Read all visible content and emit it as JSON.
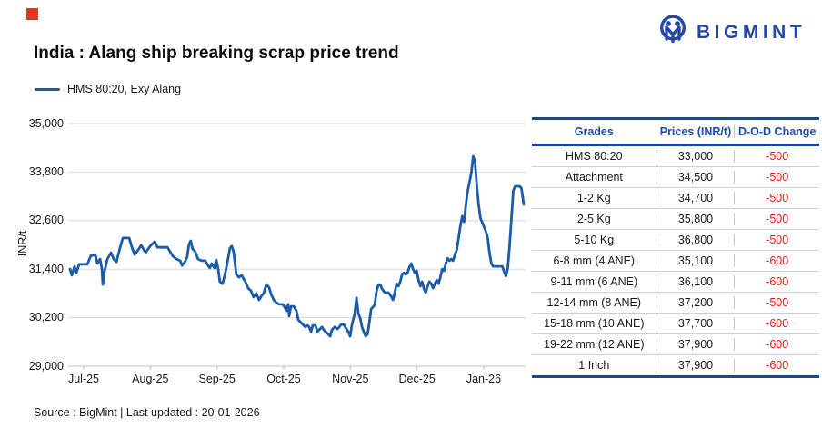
{
  "brand": {
    "name": "BIGMINT",
    "color": "#2547A5"
  },
  "marker_color": "#EB3323",
  "title": "India : Alang ship breaking scrap price trend",
  "legend": {
    "label": "HMS 80:20, Exy Alang",
    "line_color": "#1A5CA8"
  },
  "footer": "Source : BigMint | Last updated : 20-01-2026",
  "chart_data": {
    "type": "line",
    "title": "India : Alang ship breaking scrap price trend",
    "series_name": "HMS 80:20, Exy Alang",
    "ylabel": "INR/t",
    "ylim": [
      29000,
      35000
    ],
    "ytick_step": 1200,
    "yticks": [
      "29,000",
      "30,200",
      "31,400",
      "32,600",
      "33,800",
      "35,000"
    ],
    "xticks": [
      "Jul-25",
      "Aug-25",
      "Sep-25",
      "Oct-25",
      "Nov-25",
      "Dec-25",
      "Jan-26"
    ],
    "grid": true,
    "legend_position": "top-left",
    "line_color": "#1A5CA8",
    "last_value": 33000,
    "points": [
      [
        0.004,
        31400
      ],
      [
        0.008,
        31250
      ],
      [
        0.014,
        31470
      ],
      [
        0.018,
        31310
      ],
      [
        0.024,
        31520
      ],
      [
        0.042,
        31520
      ],
      [
        0.05,
        31740
      ],
      [
        0.06,
        31740
      ],
      [
        0.064,
        31540
      ],
      [
        0.07,
        31650
      ],
      [
        0.074,
        31400
      ],
      [
        0.076,
        31020
      ],
      [
        0.08,
        31360
      ],
      [
        0.086,
        31650
      ],
      [
        0.094,
        31810
      ],
      [
        0.1,
        31650
      ],
      [
        0.106,
        31580
      ],
      [
        0.114,
        31940
      ],
      [
        0.12,
        32170
      ],
      [
        0.134,
        32170
      ],
      [
        0.14,
        31940
      ],
      [
        0.146,
        31760
      ],
      [
        0.154,
        31880
      ],
      [
        0.16,
        31990
      ],
      [
        0.17,
        31810
      ],
      [
        0.18,
        31970
      ],
      [
        0.19,
        32080
      ],
      [
        0.196,
        31940
      ],
      [
        0.218,
        31940
      ],
      [
        0.23,
        31720
      ],
      [
        0.238,
        31650
      ],
      [
        0.246,
        31610
      ],
      [
        0.25,
        31490
      ],
      [
        0.256,
        31580
      ],
      [
        0.261,
        31700
      ],
      [
        0.265,
        32010
      ],
      [
        0.269,
        32100
      ],
      [
        0.273,
        31900
      ],
      [
        0.279,
        31830
      ],
      [
        0.285,
        31650
      ],
      [
        0.293,
        31610
      ],
      [
        0.301,
        31610
      ],
      [
        0.307,
        31490
      ],
      [
        0.311,
        31430
      ],
      [
        0.315,
        31540
      ],
      [
        0.321,
        31430
      ],
      [
        0.325,
        31630
      ],
      [
        0.329,
        31430
      ],
      [
        0.333,
        31090
      ],
      [
        0.339,
        31040
      ],
      [
        0.345,
        31310
      ],
      [
        0.349,
        31540
      ],
      [
        0.355,
        31920
      ],
      [
        0.359,
        31970
      ],
      [
        0.363,
        31830
      ],
      [
        0.369,
        31270
      ],
      [
        0.375,
        31200
      ],
      [
        0.381,
        31250
      ],
      [
        0.385,
        31160
      ],
      [
        0.389,
        31090
      ],
      [
        0.395,
        30930
      ],
      [
        0.401,
        30870
      ],
      [
        0.407,
        30710
      ],
      [
        0.413,
        30800
      ],
      [
        0.419,
        30640
      ],
      [
        0.425,
        30750
      ],
      [
        0.429,
        30800
      ],
      [
        0.435,
        31020
      ],
      [
        0.441,
        30950
      ],
      [
        0.445,
        30800
      ],
      [
        0.451,
        30640
      ],
      [
        0.457,
        30570
      ],
      [
        0.463,
        30530
      ],
      [
        0.471,
        30530
      ],
      [
        0.475,
        30460
      ],
      [
        0.479,
        30370
      ],
      [
        0.483,
        30530
      ],
      [
        0.485,
        30240
      ],
      [
        0.489,
        30480
      ],
      [
        0.495,
        30480
      ],
      [
        0.501,
        30370
      ],
      [
        0.505,
        30150
      ],
      [
        0.511,
        30080
      ],
      [
        0.517,
        30010
      ],
      [
        0.521,
        29970
      ],
      [
        0.525,
        30010
      ],
      [
        0.529,
        29970
      ],
      [
        0.533,
        29850
      ],
      [
        0.537,
        30010
      ],
      [
        0.543,
        30010
      ],
      [
        0.547,
        29850
      ],
      [
        0.551,
        29900
      ],
      [
        0.557,
        29970
      ],
      [
        0.561,
        29900
      ],
      [
        0.565,
        29850
      ],
      [
        0.571,
        29790
      ],
      [
        0.575,
        29740
      ],
      [
        0.579,
        29900
      ],
      [
        0.585,
        29970
      ],
      [
        0.591,
        29920
      ],
      [
        0.595,
        29970
      ],
      [
        0.599,
        30030
      ],
      [
        0.605,
        30030
      ],
      [
        0.611,
        29920
      ],
      [
        0.615,
        29850
      ],
      [
        0.619,
        29740
      ],
      [
        0.623,
        30030
      ],
      [
        0.629,
        30300
      ],
      [
        0.633,
        30690
      ],
      [
        0.637,
        30300
      ],
      [
        0.641,
        30190
      ],
      [
        0.645,
        29970
      ],
      [
        0.649,
        29850
      ],
      [
        0.653,
        29740
      ],
      [
        0.657,
        29790
      ],
      [
        0.661,
        30080
      ],
      [
        0.665,
        30420
      ],
      [
        0.669,
        30460
      ],
      [
        0.673,
        30530
      ],
      [
        0.677,
        30870
      ],
      [
        0.681,
        31020
      ],
      [
        0.685,
        31020
      ],
      [
        0.689,
        30910
      ],
      [
        0.695,
        30820
      ],
      [
        0.703,
        30820
      ],
      [
        0.709,
        30730
      ],
      [
        0.713,
        30640
      ],
      [
        0.717,
        30820
      ],
      [
        0.721,
        31040
      ],
      [
        0.725,
        30980
      ],
      [
        0.729,
        31090
      ],
      [
        0.733,
        31270
      ],
      [
        0.737,
        31310
      ],
      [
        0.741,
        31270
      ],
      [
        0.745,
        31310
      ],
      [
        0.749,
        31450
      ],
      [
        0.753,
        31540
      ],
      [
        0.757,
        31400
      ],
      [
        0.761,
        31310
      ],
      [
        0.765,
        31360
      ],
      [
        0.769,
        31130
      ],
      [
        0.773,
        30980
      ],
      [
        0.777,
        31090
      ],
      [
        0.781,
        30910
      ],
      [
        0.785,
        30820
      ],
      [
        0.789,
        30980
      ],
      [
        0.793,
        31090
      ],
      [
        0.797,
        31040
      ],
      [
        0.801,
        30930
      ],
      [
        0.805,
        31040
      ],
      [
        0.809,
        31130
      ],
      [
        0.813,
        31040
      ],
      [
        0.817,
        31200
      ],
      [
        0.821,
        31400
      ],
      [
        0.825,
        31360
      ],
      [
        0.829,
        31540
      ],
      [
        0.833,
        31670
      ],
      [
        0.837,
        31610
      ],
      [
        0.841,
        31650
      ],
      [
        0.845,
        31610
      ],
      [
        0.849,
        31760
      ],
      [
        0.853,
        31880
      ],
      [
        0.857,
        32170
      ],
      [
        0.861,
        32480
      ],
      [
        0.865,
        32710
      ],
      [
        0.869,
        32570
      ],
      [
        0.871,
        32750
      ],
      [
        0.873,
        33000
      ],
      [
        0.877,
        33340
      ],
      [
        0.881,
        33560
      ],
      [
        0.885,
        33790
      ],
      [
        0.889,
        34190
      ],
      [
        0.893,
        34060
      ],
      [
        0.897,
        33450
      ],
      [
        0.901,
        33000
      ],
      [
        0.905,
        32660
      ],
      [
        0.909,
        32550
      ],
      [
        0.913,
        32440
      ],
      [
        0.917,
        32330
      ],
      [
        0.921,
        32170
      ],
      [
        0.925,
        31800
      ],
      [
        0.929,
        31540
      ],
      [
        0.933,
        31470
      ],
      [
        0.953,
        31470
      ],
      [
        0.957,
        31330
      ],
      [
        0.961,
        31230
      ],
      [
        0.965,
        31430
      ],
      [
        0.969,
        31990
      ],
      [
        0.973,
        32660
      ],
      [
        0.977,
        33340
      ],
      [
        0.981,
        33450
      ],
      [
        0.991,
        33450
      ],
      [
        0.995,
        33400
      ],
      [
        1.0,
        33000
      ]
    ]
  },
  "table": {
    "headers": [
      "Grades",
      "Prices (INR/t)",
      "D-O-D Change"
    ],
    "header_color": "#1F4EA1",
    "change_color": "#F01414",
    "rows": [
      [
        "HMS 80:20",
        "33,000",
        "-500"
      ],
      [
        "Attachment",
        "34,500",
        "-500"
      ],
      [
        "1-2 Kg",
        "34,700",
        "-500"
      ],
      [
        "2-5 Kg",
        "35,800",
        "-500"
      ],
      [
        "5-10 Kg",
        "36,800",
        "-500"
      ],
      [
        "6-8 mm (4 ANE)",
        "35,100",
        "-600"
      ],
      [
        "9-11 mm (6 ANE)",
        "36,100",
        "-600"
      ],
      [
        "12-14 mm (8 ANE)",
        "37,200",
        "-500"
      ],
      [
        "15-18 mm (10 ANE)",
        "37,700",
        "-600"
      ],
      [
        "19-22 mm (12 ANE)",
        "37,900",
        "-600"
      ],
      [
        "1 Inch",
        "37,900",
        "-600"
      ]
    ]
  }
}
